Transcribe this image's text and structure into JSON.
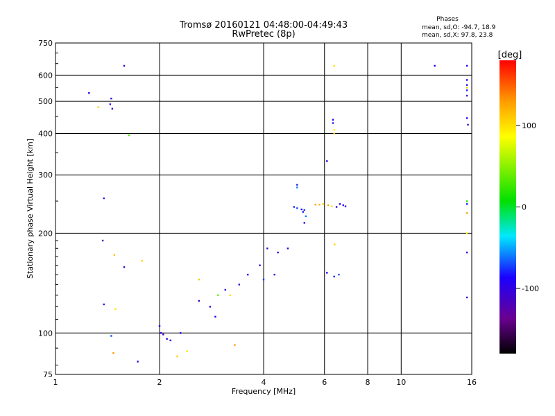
{
  "chart_data": {
    "type": "scatter",
    "title": "Tromsø 20160121 04:48:00-04:49:43",
    "subtitle": "RwPretec (8p)",
    "xlabel": "Frequency [MHz]",
    "ylabel": "Stationary phase Virtual Height [km]",
    "x_scale": "log",
    "y_scale": "log",
    "xlim": [
      1,
      16
    ],
    "ylim": [
      75,
      750
    ],
    "x_ticks": [
      1,
      2,
      4,
      6,
      8,
      10,
      16
    ],
    "x_tick_labels": [
      "1",
      "2",
      "4",
      "6",
      "8",
      "10",
      "16"
    ],
    "y_ticks": [
      75,
      100,
      200,
      300,
      400,
      500,
      600,
      750
    ],
    "y_tick_labels": [
      "75",
      "100",
      "200",
      "300",
      "400",
      "500",
      "600",
      "750"
    ],
    "grid": true,
    "colorbar": {
      "label": "[deg]",
      "range": [
        -180,
        180
      ],
      "ticks": [
        100,
        0,
        -100
      ],
      "tick_labels": [
        "100",
        "0",
        "-100"
      ]
    },
    "stats": {
      "heading": "Phases",
      "line_o": "mean, sd,O: -94.7, 18.9",
      "line_x": "mean, sd,X:  97.8, 23.8"
    },
    "series": [
      {
        "points": [
          [
            1.25,
            530,
            -95
          ],
          [
            1.38,
            255,
            -110
          ],
          [
            1.37,
            190,
            -120
          ],
          [
            1.38,
            122,
            -100
          ],
          [
            1.45,
            510,
            -100
          ],
          [
            1.46,
            475,
            -95
          ],
          [
            1.44,
            490,
            -105
          ],
          [
            1.58,
            640,
            -100
          ],
          [
            1.58,
            158,
            -110
          ],
          [
            1.45,
            98,
            -70
          ],
          [
            1.73,
            82,
            -100
          ],
          [
            12.5,
            640,
            -95
          ],
          [
            15.5,
            640,
            -100
          ],
          [
            15.5,
            580,
            -90
          ],
          [
            15.5,
            560,
            -100
          ],
          [
            15.5,
            540,
            -80
          ],
          [
            15.5,
            520,
            -110
          ],
          [
            15.5,
            445,
            -95
          ],
          [
            15.6,
            425,
            -100
          ],
          [
            15.5,
            245,
            -80
          ],
          [
            15.5,
            230,
            -95
          ],
          [
            15.5,
            175,
            -100
          ],
          [
            15.5,
            128,
            -100
          ],
          [
            6.35,
            440,
            -90
          ],
          [
            6.35,
            430,
            -80
          ],
          [
            6.1,
            330,
            -100
          ],
          [
            2.0,
            105,
            -100
          ],
          [
            2.02,
            100,
            -95
          ],
          [
            2.1,
            96,
            -100
          ],
          [
            2.05,
            99,
            -110
          ],
          [
            2.15,
            95,
            -90
          ],
          [
            2.3,
            100,
            -95
          ],
          [
            2.6,
            125,
            -110
          ],
          [
            2.8,
            120,
            -100
          ],
          [
            2.9,
            112,
            -95
          ],
          [
            3.1,
            135,
            -95
          ],
          [
            3.4,
            140,
            -105
          ],
          [
            3.6,
            150,
            -90
          ],
          [
            3.9,
            160,
            -100
          ],
          [
            4.1,
            180,
            -110
          ],
          [
            4.4,
            175,
            -100
          ],
          [
            4.7,
            180,
            -95
          ],
          [
            4.0,
            145,
            -75
          ],
          [
            4.3,
            150,
            -100
          ],
          [
            5.0,
            280,
            -80
          ],
          [
            5.0,
            275,
            -60
          ],
          [
            4.9,
            240,
            -80
          ],
          [
            5.0,
            238,
            -70
          ],
          [
            5.15,
            236,
            -90
          ],
          [
            5.25,
            235,
            -75
          ],
          [
            5.3,
            225,
            -60
          ],
          [
            5.25,
            215,
            -90
          ],
          [
            5.2,
            232,
            -80
          ],
          [
            6.5,
            240,
            -100
          ],
          [
            6.65,
            245,
            -95
          ],
          [
            6.8,
            243,
            -90
          ],
          [
            6.9,
            241,
            -100
          ],
          [
            6.1,
            152,
            -90
          ],
          [
            6.4,
            148,
            -80
          ],
          [
            6.6,
            150,
            -70
          ]
        ]
      },
      {
        "points": [
          [
            1.33,
            480,
            105
          ],
          [
            1.48,
            172,
            110
          ],
          [
            1.49,
            118,
            100
          ],
          [
            1.47,
            87,
            130
          ],
          [
            1.63,
            395,
            30
          ],
          [
            1.78,
            165,
            105
          ],
          [
            6.4,
            640,
            100
          ],
          [
            6.4,
            400,
            110
          ],
          [
            6.4,
            410,
            90
          ],
          [
            6.42,
            185,
            105
          ],
          [
            15.5,
            250,
            20
          ],
          [
            15.5,
            550,
            110
          ],
          [
            15.5,
            200,
            90
          ],
          [
            15.5,
            230,
            110
          ],
          [
            2.25,
            85,
            110
          ],
          [
            2.4,
            88,
            100
          ],
          [
            2.6,
            145,
            110
          ],
          [
            2.95,
            130,
            40
          ],
          [
            3.2,
            130,
            100
          ],
          [
            3.3,
            92,
            130
          ],
          [
            5.8,
            244,
            120
          ],
          [
            5.95,
            245,
            110
          ],
          [
            6.15,
            243,
            130
          ],
          [
            6.3,
            241,
            100
          ],
          [
            5.65,
            244,
            130
          ]
        ]
      }
    ]
  }
}
